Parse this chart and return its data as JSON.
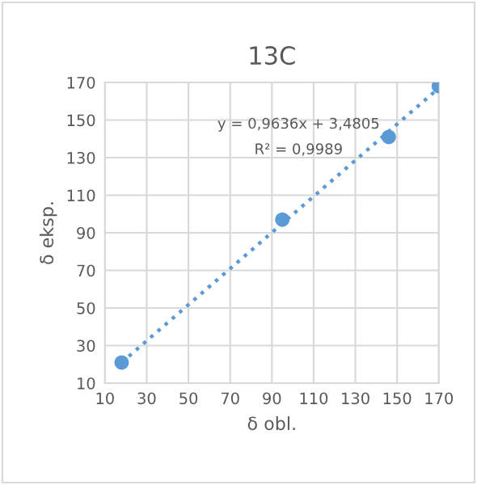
{
  "chart_data": {
    "type": "scatter",
    "title": "13C",
    "xlabel": "δ obl.",
    "ylabel": "δ eksp.",
    "xlim": [
      10,
      170
    ],
    "xticks": [
      10,
      30,
      50,
      70,
      90,
      110,
      130,
      150,
      170
    ],
    "ylim": [
      10,
      170
    ],
    "yticks": [
      10,
      30,
      50,
      70,
      90,
      110,
      130,
      150,
      170
    ],
    "grid": true,
    "annotations": [
      "y = 0,9636x + 3,4805",
      "R² = 0,9989"
    ],
    "series": [
      {
        "color": "#5b9bd5",
        "marker": "circle",
        "x": [
          18,
          95,
          146,
          170
        ],
        "values": [
          21,
          97,
          141,
          168
        ]
      },
      {
        "type": "line",
        "color": "#5b9bd5",
        "line_style": "dotted",
        "marker": "none",
        "x": [
          18,
          170
        ],
        "values": [
          21,
          167
        ]
      }
    ]
  }
}
